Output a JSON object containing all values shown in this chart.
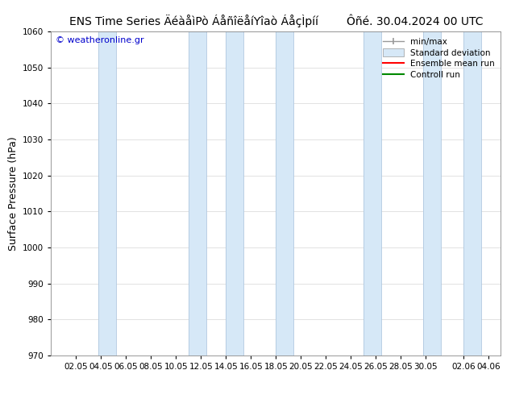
{
  "title_left": "ENS Time Series ÄéàåìPò ÁåñîëåíYîaò ÁåçÌpíí",
  "title_right": "Ôñé. 30.04.2024 00 UTC",
  "ylabel": "Surface Pressure (hPa)",
  "ylim": [
    970,
    1060
  ],
  "yticks": [
    970,
    980,
    990,
    1000,
    1010,
    1020,
    1030,
    1040,
    1050,
    1060
  ],
  "watermark": "© weatheronline.gr",
  "background_color": "#ffffff",
  "plot_bg_color": "#ffffff",
  "shaded_color": "#d6e8f7",
  "shaded_edge_color": "#b0c8e0",
  "title_fontsize": 10,
  "axis_label_fontsize": 9,
  "tick_fontsize": 7.5
}
